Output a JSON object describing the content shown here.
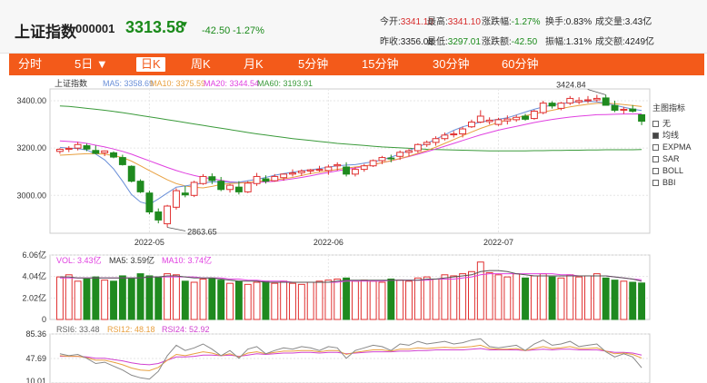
{
  "header": {
    "name": "上证指数",
    "code": "000001",
    "price": "3313.58",
    "arrow": "▼",
    "change": "-42.50",
    "change_pct": "-1.27%",
    "stats": [
      {
        "label": "今开:",
        "value": "3341.10",
        "tone": "red"
      },
      {
        "label": "最高:",
        "value": "3341.10",
        "tone": "red"
      },
      {
        "label": "涨跌幅:",
        "value": "-1.27%",
        "tone": "green"
      },
      {
        "label": "换手:",
        "value": "0.83%",
        "tone": "normal"
      },
      {
        "label": "成交量:",
        "value": "3.43亿",
        "tone": "normal"
      },
      {
        "label": "昨收:",
        "value": "3356.08",
        "tone": "normal"
      },
      {
        "label": "最低:",
        "value": "3297.01",
        "tone": "green"
      },
      {
        "label": "涨跌额:",
        "value": "-42.50",
        "tone": "green"
      },
      {
        "label": "振幅:",
        "value": "1.31%",
        "tone": "normal"
      },
      {
        "label": "成交额:",
        "value": "4249亿",
        "tone": "normal"
      }
    ]
  },
  "tabs": [
    {
      "label": "分时",
      "active": false
    },
    {
      "label": "5日 ▼",
      "active": false
    },
    {
      "label": "日K",
      "active": true
    },
    {
      "label": "周K",
      "active": false
    },
    {
      "label": "月K",
      "active": false
    },
    {
      "label": "5分钟",
      "active": false
    },
    {
      "label": "15分钟",
      "active": false
    },
    {
      "label": "30分钟",
      "active": false
    },
    {
      "label": "60分钟",
      "active": false
    }
  ],
  "main_legend": {
    "name": "上证指数",
    "ma5": "MA5: 3358.69",
    "ma10": "MA10: 3375.59",
    "ma20": "MA20: 3344.54",
    "ma60": "MA60: 3193.91"
  },
  "vol_legend": {
    "vol": "VOL: 3.43亿",
    "ma5": "MA5: 3.59亿",
    "ma10": "MA10: 3.74亿"
  },
  "rsi_legend": {
    "rsi6": "RSI6: 33.48",
    "rsi12": "RSI12: 48.18",
    "rsi24": "RSI24: 52.92"
  },
  "side_panel": {
    "title": "主图指标",
    "options": [
      {
        "label": "无",
        "checked": false
      },
      {
        "label": "均线",
        "checked": true
      },
      {
        "label": "EXPMA",
        "checked": false
      },
      {
        "label": "SAR",
        "checked": false
      },
      {
        "label": "BOLL",
        "checked": false
      },
      {
        "label": "BBI",
        "checked": false
      }
    ]
  },
  "annotations": {
    "high": "3424.84",
    "low": "2863.65"
  },
  "colors": {
    "up": "#e03030",
    "down": "#1f8a1f",
    "tab_bar": "#f35a1a",
    "ma5": "#6a8fd8",
    "ma10": "#e8a040",
    "ma20": "#e040e0",
    "ma60": "#3a9a3a"
  },
  "chart_data": {
    "type": "candlestick",
    "main": {
      "y_ticks": [
        3400,
        3200,
        3000
      ],
      "x_labels": [
        "2022-05",
        "2022-06",
        "2022-07"
      ],
      "candles": [
        [
          3186,
          3200,
          3176,
          3195
        ],
        [
          3195,
          3208,
          3183,
          3199
        ],
        [
          3200,
          3226,
          3190,
          3215
        ],
        [
          3210,
          3219,
          3187,
          3196
        ],
        [
          3190,
          3211,
          3174,
          3178
        ],
        [
          3180,
          3190,
          3166,
          3188
        ],
        [
          3180,
          3186,
          3157,
          3162
        ],
        [
          3160,
          3172,
          3126,
          3130
        ],
        [
          3123,
          3127,
          3055,
          3060
        ],
        [
          3060,
          3068,
          3010,
          3015
        ],
        [
          3010,
          3020,
          2920,
          2930
        ],
        [
          2930,
          2945,
          2882,
          2896
        ],
        [
          2880,
          2960,
          2865,
          2955
        ],
        [
          2950,
          3030,
          2940,
          3020
        ],
        [
          3010,
          3040,
          2992,
          3002
        ],
        [
          3000,
          3062,
          2993,
          3055
        ],
        [
          3050,
          3090,
          3045,
          3080
        ],
        [
          3079,
          3093,
          3048,
          3063
        ],
        [
          3060,
          3078,
          3018,
          3025
        ],
        [
          3025,
          3048,
          3012,
          3043
        ],
        [
          3035,
          3060,
          3004,
          3015
        ],
        [
          3015,
          3060,
          3010,
          3052
        ],
        [
          3050,
          3095,
          3040,
          3080
        ],
        [
          3070,
          3085,
          3050,
          3060
        ],
        [
          3062,
          3090,
          3058,
          3080
        ],
        [
          3075,
          3093,
          3062,
          3090
        ],
        [
          3090,
          3110,
          3080,
          3095
        ],
        [
          3096,
          3110,
          3082,
          3103
        ],
        [
          3103,
          3112,
          3090,
          3108
        ],
        [
          3108,
          3125,
          3100,
          3110
        ],
        [
          3105,
          3130,
          3087,
          3120
        ],
        [
          3125,
          3140,
          3105,
          3130
        ],
        [
          3120,
          3140,
          3080,
          3090
        ],
        [
          3090,
          3120,
          3080,
          3110
        ],
        [
          3110,
          3133,
          3100,
          3125
        ],
        [
          3125,
          3152,
          3120,
          3147
        ],
        [
          3147,
          3167,
          3132,
          3160
        ],
        [
          3158,
          3172,
          3140,
          3155
        ],
        [
          3165,
          3190,
          3150,
          3182
        ],
        [
          3182,
          3196,
          3165,
          3189
        ],
        [
          3189,
          3220,
          3180,
          3215
        ],
        [
          3215,
          3232,
          3205,
          3224
        ],
        [
          3224,
          3250,
          3210,
          3240
        ],
        [
          3240,
          3266,
          3232,
          3255
        ],
        [
          3256,
          3272,
          3245,
          3260
        ],
        [
          3260,
          3290,
          3245,
          3281
        ],
        [
          3290,
          3320,
          3285,
          3310
        ],
        [
          3310,
          3360,
          3305,
          3335
        ],
        [
          3312,
          3330,
          3300,
          3318
        ],
        [
          3300,
          3328,
          3294,
          3320
        ],
        [
          3315,
          3338,
          3300,
          3323
        ],
        [
          3320,
          3340,
          3311,
          3330
        ],
        [
          3335,
          3345,
          3316,
          3322
        ],
        [
          3325,
          3362,
          3320,
          3356
        ],
        [
          3350,
          3400,
          3343,
          3390
        ],
        [
          3390,
          3398,
          3367,
          3378
        ],
        [
          3368,
          3395,
          3360,
          3390
        ],
        [
          3390,
          3420,
          3382,
          3410
        ],
        [
          3395,
          3415,
          3385,
          3401
        ],
        [
          3400,
          3420,
          3390,
          3404
        ],
        [
          3404,
          3424.84,
          3395,
          3410
        ],
        [
          3412,
          3425,
          3380,
          3381
        ],
        [
          3380,
          3400,
          3352,
          3360
        ],
        [
          3360,
          3374,
          3345,
          3364
        ],
        [
          3365,
          3382,
          3350,
          3356
        ],
        [
          3341.1,
          3341.1,
          3297.01,
          3313.58
        ]
      ],
      "ma5": [
        3203,
        3200,
        3198,
        3192,
        3175,
        3150,
        3112,
        3060,
        3004,
        2972,
        2962,
        2985,
        3010,
        3035,
        3040,
        3046,
        3052,
        3058,
        3057,
        3055,
        3056,
        3062,
        3068,
        3076,
        3085,
        3092,
        3098,
        3104,
        3108,
        3113,
        3120,
        3125,
        3128,
        3130,
        3136,
        3142,
        3150,
        3162,
        3175,
        3190,
        3205,
        3220,
        3238,
        3256,
        3275,
        3290,
        3300,
        3310,
        3316,
        3322,
        3328,
        3340,
        3352,
        3364,
        3374,
        3382,
        3388,
        3393,
        3396,
        3398,
        3395,
        3390,
        3381,
        3373,
        3365,
        3358.69
      ],
      "ma10": [
        3170,
        3172,
        3174,
        3176,
        3176,
        3174,
        3168,
        3160,
        3145,
        3125,
        3105,
        3085,
        3066,
        3050,
        3040,
        3034,
        3032,
        3038,
        3046,
        3050,
        3052,
        3055,
        3058,
        3062,
        3066,
        3070,
        3076,
        3084,
        3092,
        3098,
        3104,
        3110,
        3116,
        3120,
        3125,
        3130,
        3138,
        3147,
        3156,
        3166,
        3178,
        3190,
        3204,
        3220,
        3236,
        3252,
        3268,
        3283,
        3296,
        3308,
        3318,
        3328,
        3337,
        3345,
        3352,
        3360,
        3367,
        3374,
        3380,
        3385,
        3389,
        3390,
        3388,
        3384,
        3380,
        3375.59
      ],
      "ma20": [
        3230,
        3228,
        3225,
        3220,
        3212,
        3205,
        3196,
        3186,
        3174,
        3160,
        3146,
        3132,
        3118,
        3105,
        3094,
        3084,
        3076,
        3070,
        3064,
        3058,
        3055,
        3054,
        3055,
        3057,
        3060,
        3065,
        3070,
        3076,
        3083,
        3090,
        3097,
        3104,
        3110,
        3116,
        3123,
        3130,
        3138,
        3146,
        3155,
        3164,
        3174,
        3185,
        3196,
        3208,
        3220,
        3232,
        3244,
        3256,
        3266,
        3276,
        3284,
        3292,
        3300,
        3308,
        3315,
        3321,
        3326,
        3331,
        3335,
        3338,
        3341,
        3342,
        3343,
        3344,
        3344,
        3344.54
      ],
      "ma60": [
        3378,
        3376,
        3372,
        3368,
        3364,
        3360,
        3355,
        3350,
        3344,
        3338,
        3332,
        3326,
        3320,
        3314,
        3308,
        3302,
        3296,
        3290,
        3284,
        3278,
        3272,
        3266,
        3260,
        3255,
        3250,
        3245,
        3240,
        3236,
        3232,
        3228,
        3224,
        3220,
        3217,
        3214,
        3211,
        3208,
        3205,
        3203,
        3201,
        3199,
        3197,
        3195,
        3194,
        3193,
        3192,
        3191,
        3190,
        3189,
        3188,
        3188,
        3188,
        3188,
        3188,
        3189,
        3189,
        3190,
        3190,
        3191,
        3191,
        3192,
        3192,
        3193,
        3193,
        3193,
        3193,
        3193.91
      ]
    },
    "volume": {
      "y_ticks": [
        "6.06亿",
        "4.04亿",
        "2.02亿",
        "0"
      ],
      "values": [
        4.0,
        4.2,
        3.6,
        3.8,
        4.0,
        3.7,
        3.6,
        4.1,
        3.9,
        4.3,
        4.1,
        4.0,
        4.3,
        4.2,
        3.6,
        3.5,
        3.8,
        3.9,
        3.7,
        3.4,
        3.6,
        3.3,
        3.5,
        3.6,
        3.4,
        3.6,
        3.4,
        3.3,
        3.5,
        3.6,
        3.7,
        3.8,
        3.9,
        3.6,
        3.7,
        3.6,
        3.5,
        3.8,
        3.7,
        3.6,
        3.9,
        4.0,
        3.8,
        4.2,
        4.1,
        4.3,
        4.5,
        5.4,
        4.4,
        4.2,
        4.0,
        4.3,
        3.9,
        4.1,
        4.3,
        4.0,
        3.9,
        4.2,
        4.0,
        4.1,
        4.3,
        3.9,
        3.7,
        3.6,
        3.5,
        3.43
      ],
      "ma5": [
        4.0,
        4.0,
        3.9,
        3.9,
        3.9,
        3.9,
        3.9,
        3.9,
        3.9,
        3.9,
        4.0,
        4.0,
        4.1,
        4.1,
        4.0,
        3.9,
        3.9,
        3.9,
        3.8,
        3.7,
        3.6,
        3.6,
        3.6,
        3.5,
        3.5,
        3.5,
        3.5,
        3.5,
        3.5,
        3.5,
        3.5,
        3.6,
        3.7,
        3.7,
        3.7,
        3.7,
        3.7,
        3.7,
        3.7,
        3.7,
        3.7,
        3.8,
        3.8,
        3.9,
        4.0,
        4.1,
        4.2,
        4.5,
        4.6,
        4.6,
        4.5,
        4.3,
        4.2,
        4.1,
        4.1,
        4.1,
        4.1,
        4.1,
        4.1,
        4.1,
        4.1,
        4.1,
        4.0,
        3.9,
        3.8,
        3.59
      ],
      "ma10": [
        3.9,
        3.9,
        3.9,
        3.9,
        3.9,
        3.9,
        3.9,
        3.9,
        3.9,
        3.9,
        4.0,
        4.0,
        4.0,
        4.0,
        4.0,
        4.0,
        3.9,
        3.9,
        3.9,
        3.8,
        3.8,
        3.7,
        3.7,
        3.6,
        3.6,
        3.6,
        3.5,
        3.5,
        3.5,
        3.5,
        3.5,
        3.5,
        3.6,
        3.6,
        3.6,
        3.6,
        3.6,
        3.7,
        3.7,
        3.7,
        3.7,
        3.7,
        3.8,
        3.8,
        3.8,
        3.9,
        4.0,
        4.2,
        4.3,
        4.3,
        4.3,
        4.3,
        4.3,
        4.3,
        4.3,
        4.3,
        4.2,
        4.2,
        4.1,
        4.1,
        4.1,
        4.1,
        4.0,
        3.9,
        3.8,
        3.74
      ]
    },
    "rsi": {
      "y_ticks": [
        "85.36",
        "47.69",
        "10.01"
      ],
      "rsi6": [
        55,
        52,
        54,
        48,
        40,
        42,
        36,
        30,
        22,
        18,
        16,
        28,
        52,
        68,
        60,
        64,
        70,
        62,
        52,
        60,
        48,
        62,
        66,
        55,
        60,
        64,
        62,
        66,
        64,
        60,
        66,
        64,
        48,
        60,
        64,
        68,
        66,
        60,
        70,
        68,
        74,
        70,
        72,
        74,
        70,
        72,
        76,
        78,
        66,
        64,
        66,
        68,
        60,
        70,
        76,
        68,
        70,
        74,
        66,
        68,
        70,
        58,
        50,
        55,
        50,
        33.48
      ],
      "rsi12": [
        52,
        51,
        51,
        49,
        45,
        45,
        42,
        38,
        33,
        30,
        29,
        34,
        45,
        54,
        52,
        55,
        58,
        56,
        52,
        55,
        50,
        56,
        58,
        55,
        57,
        59,
        59,
        60,
        60,
        58,
        60,
        60,
        54,
        57,
        59,
        61,
        61,
        59,
        62,
        62,
        64,
        63,
        64,
        65,
        64,
        65,
        66,
        68,
        63,
        62,
        62,
        63,
        60,
        63,
        66,
        63,
        64,
        66,
        63,
        63,
        64,
        59,
        55,
        56,
        54,
        48.18
      ],
      "rsi24": [
        51,
        51,
        51,
        50,
        48,
        48,
        46,
        44,
        41,
        39,
        38,
        40,
        45,
        50,
        50,
        51,
        53,
        53,
        52,
        53,
        51,
        53,
        55,
        54,
        55,
        56,
        56,
        57,
        57,
        56,
        57,
        57,
        55,
        56,
        57,
        58,
        58,
        58,
        59,
        59,
        60,
        60,
        61,
        61,
        61,
        61,
        62,
        63,
        61,
        61,
        61,
        61,
        60,
        61,
        62,
        61,
        62,
        62,
        61,
        61,
        61,
        59,
        57,
        57,
        56,
        52.92
      ]
    }
  }
}
